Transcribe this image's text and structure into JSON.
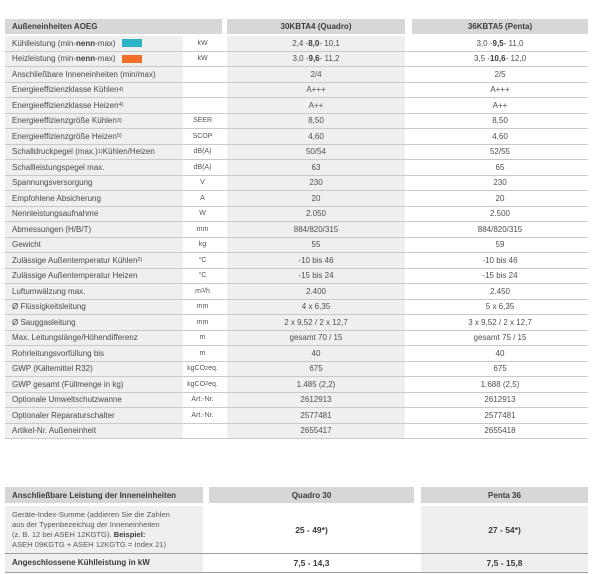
{
  "colors": {
    "header_gray": "#d7d7d7",
    "cell_gray": "#efefef",
    "separator": "#c9c9c9",
    "cooling_swatch": "#2cb3c8",
    "heating_swatch": "#f26e28"
  },
  "spec_table": {
    "header": {
      "product": "Außeneinheiten AOEG",
      "quadro": "30KBTA4 (Quadro)",
      "penta": "36KBTA5 (Penta)"
    },
    "rows": [
      {
        "label": [
          {
            "t": "Kühlleistung (min-"
          },
          {
            "t": "nenn",
            "b": true
          },
          {
            "t": "-max)"
          }
        ],
        "swatch": "#2cb3c8",
        "swatch_name": "cooling-capacity-swatch",
        "unit": [
          {
            "t": "kW"
          }
        ],
        "quadro": [
          {
            "t": "2,4 - "
          },
          {
            "t": "8,0",
            "b": true
          },
          {
            "t": " - 10,1"
          }
        ],
        "penta": [
          {
            "t": "3,0 - "
          },
          {
            "t": "9,5",
            "b": true
          },
          {
            "t": " - 11,0"
          }
        ]
      },
      {
        "label": [
          {
            "t": "Heizleistung (min-"
          },
          {
            "t": "nenn",
            "b": true
          },
          {
            "t": "-max)"
          }
        ],
        "swatch": "#f26e28",
        "swatch_name": "heating-capacity-swatch",
        "unit": [
          {
            "t": "kW"
          }
        ],
        "quadro": [
          {
            "t": "3,0 - "
          },
          {
            "t": "9,6",
            "b": true
          },
          {
            "t": " - 11,2"
          }
        ],
        "penta": [
          {
            "t": "3,5 - "
          },
          {
            "t": "10,6",
            "b": true
          },
          {
            "t": " - 12,0"
          }
        ]
      },
      {
        "label": [
          {
            "t": "Anschließbare Inneneinheiten (min/max)"
          }
        ],
        "unit": [],
        "quadro": [
          {
            "t": "2/4"
          }
        ],
        "penta": [
          {
            "t": "2/5"
          }
        ]
      },
      {
        "label": [
          {
            "t": "Energieeffizienzklasse Kühlen "
          },
          {
            "t": "4)",
            "sup": true
          }
        ],
        "unit": [],
        "quadro": [
          {
            "t": "A+++"
          }
        ],
        "penta": [
          {
            "t": "A+++"
          }
        ]
      },
      {
        "label": [
          {
            "t": "Energieeffizienzklasse Heizen "
          },
          {
            "t": "4)",
            "sup": true
          }
        ],
        "unit": [],
        "quadro": [
          {
            "t": "A++"
          }
        ],
        "penta": [
          {
            "t": "A++"
          }
        ]
      },
      {
        "label": [
          {
            "t": "Energieeffizienzgröße Kühlen "
          },
          {
            "t": "3)",
            "sup": true
          }
        ],
        "unit": [
          {
            "t": "SEER"
          }
        ],
        "quadro": [
          {
            "t": "8,50"
          }
        ],
        "penta": [
          {
            "t": "8,50"
          }
        ]
      },
      {
        "label": [
          {
            "t": "Energieeffizienzgröße Heizen "
          },
          {
            "t": "5)",
            "sup": true
          }
        ],
        "unit": [
          {
            "t": "SCOP"
          }
        ],
        "quadro": [
          {
            "t": "4,60"
          }
        ],
        "penta": [
          {
            "t": "4,60"
          }
        ]
      },
      {
        "label": [
          {
            "t": "Schalldruckpegel (max.) "
          },
          {
            "t": "1)",
            "sup": true
          },
          {
            "t": " Kühlen/Heizen"
          }
        ],
        "unit": [
          {
            "t": "dB(A)"
          }
        ],
        "quadro": [
          {
            "t": "50/54"
          }
        ],
        "penta": [
          {
            "t": "52/55"
          }
        ]
      },
      {
        "label": [
          {
            "t": "Schallleistungspegel max."
          }
        ],
        "unit": [
          {
            "t": "dB(A)"
          }
        ],
        "quadro": [
          {
            "t": "63"
          }
        ],
        "penta": [
          {
            "t": "65"
          }
        ]
      },
      {
        "label": [
          {
            "t": "Spannungsversorgung"
          }
        ],
        "unit": [
          {
            "t": "V"
          }
        ],
        "quadro": [
          {
            "t": "230"
          }
        ],
        "penta": [
          {
            "t": "230"
          }
        ]
      },
      {
        "label": [
          {
            "t": "Empfohlene Absicherung"
          }
        ],
        "unit": [
          {
            "t": "A"
          }
        ],
        "quadro": [
          {
            "t": "20"
          }
        ],
        "penta": [
          {
            "t": "20"
          }
        ]
      },
      {
        "label": [
          {
            "t": "Nennleistungsaufnahme"
          }
        ],
        "unit": [
          {
            "t": "W"
          }
        ],
        "quadro": [
          {
            "t": "2.050"
          }
        ],
        "penta": [
          {
            "t": "2.500"
          }
        ]
      },
      {
        "label": [
          {
            "t": "Abmessungen (H/B/T)"
          }
        ],
        "unit": [
          {
            "t": "mm"
          }
        ],
        "quadro": [
          {
            "t": "884/820/315"
          }
        ],
        "penta": [
          {
            "t": "884/820/315"
          }
        ]
      },
      {
        "label": [
          {
            "t": "Gewicht"
          }
        ],
        "unit": [
          {
            "t": "kg"
          }
        ],
        "quadro": [
          {
            "t": "55"
          }
        ],
        "penta": [
          {
            "t": "59"
          }
        ]
      },
      {
        "label": [
          {
            "t": "Zulässige Außentemperatur Kühlen "
          },
          {
            "t": "2)",
            "sup": true
          }
        ],
        "unit": [
          {
            "t": "°C"
          }
        ],
        "quadro": [
          {
            "t": "-10 bis 46"
          }
        ],
        "penta": [
          {
            "t": "-10 bis 46"
          }
        ]
      },
      {
        "label": [
          {
            "t": "Zulässige Außentemperatur Heizen"
          }
        ],
        "unit": [
          {
            "t": "°C"
          }
        ],
        "quadro": [
          {
            "t": "-15 bis 24"
          }
        ],
        "penta": [
          {
            "t": "-15 bis 24"
          }
        ]
      },
      {
        "label": [
          {
            "t": "Luftumwälzung max."
          }
        ],
        "unit": [
          {
            "t": "m"
          },
          {
            "t": "3",
            "sup": true
          },
          {
            "t": "/h"
          }
        ],
        "quadro": [
          {
            "t": "2.400"
          }
        ],
        "penta": [
          {
            "t": "2.450"
          }
        ]
      },
      {
        "label": [
          {
            "t": "Ø Flüssigkeitsleitung"
          }
        ],
        "unit": [
          {
            "t": "mm"
          }
        ],
        "quadro": [
          {
            "t": "4 x 6,35"
          }
        ],
        "penta": [
          {
            "t": "5 x 6,35"
          }
        ]
      },
      {
        "label": [
          {
            "t": "Ø Sauggasleitung"
          }
        ],
        "unit": [
          {
            "t": "mm"
          }
        ],
        "quadro": [
          {
            "t": "2 x 9,52 / 2 x 12,7"
          }
        ],
        "penta": [
          {
            "t": "3 x 9,52 / 2 x 12,7"
          }
        ]
      },
      {
        "label": [
          {
            "t": "Max. Leitungslänge/Höhendifferenz"
          }
        ],
        "unit": [
          {
            "t": "m"
          }
        ],
        "quadro": [
          {
            "t": "gesamt 70 / 15"
          }
        ],
        "penta": [
          {
            "t": "gesamt 75 / 15"
          }
        ]
      },
      {
        "label": [
          {
            "t": "Rohrleitungsvorfüllung bis"
          }
        ],
        "unit": [
          {
            "t": "m"
          }
        ],
        "quadro": [
          {
            "t": "40"
          }
        ],
        "penta": [
          {
            "t": "40"
          }
        ]
      },
      {
        "label": [
          {
            "t": "GWP (Kältemittel R32)"
          }
        ],
        "unit": [
          {
            "t": "kgCO"
          },
          {
            "t": "2",
            "sub": true
          },
          {
            "t": "eq."
          }
        ],
        "quadro": [
          {
            "t": "675"
          }
        ],
        "penta": [
          {
            "t": "675"
          }
        ]
      },
      {
        "label": [
          {
            "t": "GWP gesamt (Füllmenge in kg)"
          }
        ],
        "unit": [
          {
            "t": "kgCO"
          },
          {
            "t": "2",
            "sub": true
          },
          {
            "t": "eq."
          }
        ],
        "quadro": [
          {
            "t": "1.485 (2,2)"
          }
        ],
        "penta": [
          {
            "t": "1.688 (2,5)"
          }
        ]
      },
      {
        "label": [
          {
            "t": "Optionale Umweltschutzwanne"
          }
        ],
        "unit": [
          {
            "t": "Art.-Nr."
          }
        ],
        "quadro": [
          {
            "t": "2612913"
          }
        ],
        "penta": [
          {
            "t": "2612913"
          }
        ]
      },
      {
        "label": [
          {
            "t": "Optionaler Reparaturschalter"
          }
        ],
        "unit": [
          {
            "t": "Art.-Nr."
          }
        ],
        "quadro": [
          {
            "t": "2577481"
          }
        ],
        "penta": [
          {
            "t": "2577481"
          }
        ]
      },
      {
        "label": [
          {
            "t": "Artikel-Nr. Außeneinheit"
          }
        ],
        "unit": [],
        "quadro": [
          {
            "t": "2655417"
          }
        ],
        "penta": [
          {
            "t": "2655418"
          }
        ]
      }
    ]
  },
  "power_table": {
    "header": {
      "label": "Anschließbare Leistung der Inneneinheiten",
      "quadro": "Quadro 30",
      "penta": "Penta 36"
    },
    "rows": [
      {
        "kind": "index",
        "label": [
          {
            "t": "Geräte-Index-Summe (addieren Sie die Zahlen"
          },
          {
            "br": true
          },
          {
            "t": "aus der Typenbezeichug der Inneneinheiten"
          },
          {
            "br": true
          },
          {
            "t": "(z. B. 12 bei ASEH 12KGTG). "
          },
          {
            "t": "Beispiel:",
            "b": true
          },
          {
            "br": true
          },
          {
            "t": "ASEH 09KGTG + ASEH 12KGTG = Index 21)"
          }
        ],
        "quadro": [
          {
            "t": "25 - 49*)",
            "b": true
          }
        ],
        "penta": [
          {
            "t": "27 - 54*)",
            "b": true
          }
        ]
      },
      {
        "kind": "kw",
        "label": [
          {
            "t": "Angeschlossene Kühlleistung in kW",
            "b": true
          }
        ],
        "quadro": [
          {
            "t": "7,5 - 14,3",
            "b": true
          }
        ],
        "penta": [
          {
            "t": "7,5 - 15,8",
            "b": true
          }
        ]
      }
    ]
  }
}
